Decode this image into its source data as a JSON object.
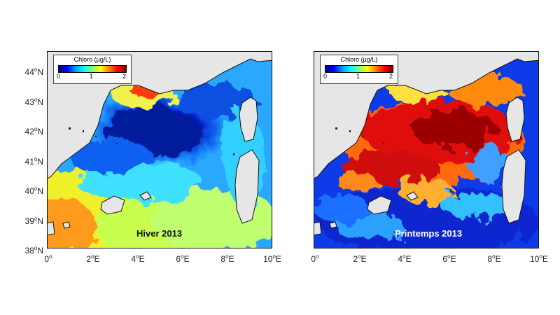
{
  "colors": {
    "land": "#e6e6e6",
    "border": "#111111"
  },
  "colorbar": {
    "title": "Chloro (µg/L)",
    "ticks": [
      "0",
      "1",
      "2"
    ],
    "colormap": "jet"
  },
  "axes": {
    "y_ticks": [
      {
        "deg": "44",
        "sup": "o",
        "hemi": "N"
      },
      {
        "deg": "43",
        "sup": "o",
        "hemi": "N"
      },
      {
        "deg": "42",
        "sup": "o",
        "hemi": "N"
      },
      {
        "deg": "41",
        "sup": "o",
        "hemi": "N"
      },
      {
        "deg": "40",
        "sup": "o",
        "hemi": "N"
      },
      {
        "deg": "39",
        "sup": "o",
        "hemi": "N"
      },
      {
        "deg": "38",
        "sup": "o",
        "hemi": "N"
      }
    ],
    "x_ticks": [
      {
        "deg": "0",
        "sup": "o",
        "hemi": ""
      },
      {
        "deg": "2",
        "sup": "o",
        "hemi": "E"
      },
      {
        "deg": "4",
        "sup": "o",
        "hemi": "E"
      },
      {
        "deg": "6",
        "sup": "o",
        "hemi": "E"
      },
      {
        "deg": "8",
        "sup": "o",
        "hemi": "E"
      },
      {
        "deg": "10",
        "sup": "o",
        "hemi": "E"
      }
    ]
  },
  "panels": [
    {
      "label": "Hiver 2013",
      "label_color": "#111111"
    },
    {
      "label": "Printemps 2013",
      "label_color": "#ffffff"
    }
  ]
}
